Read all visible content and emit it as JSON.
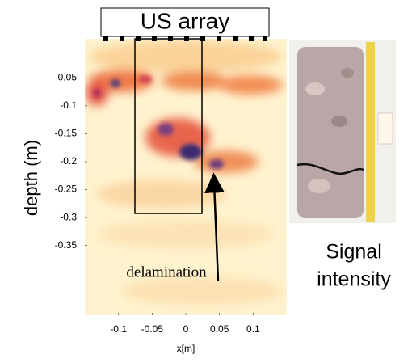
{
  "chart_data": {
    "type": "heatmap",
    "title": "US array",
    "xlabel": "x[m]",
    "ylabel": "depth (m)",
    "annotation": "delamination",
    "side_label": [
      "Signal",
      "intensity"
    ],
    "xlim": [
      -0.15,
      0.15
    ],
    "ylim": [
      -0.475,
      0.02
    ],
    "xticks": [
      -0.1,
      -0.05,
      0,
      0.05,
      0.1
    ],
    "yticks": [
      -0.05,
      -0.1,
      -0.15,
      -0.2,
      -0.25,
      -0.3,
      -0.35
    ]
  }
}
